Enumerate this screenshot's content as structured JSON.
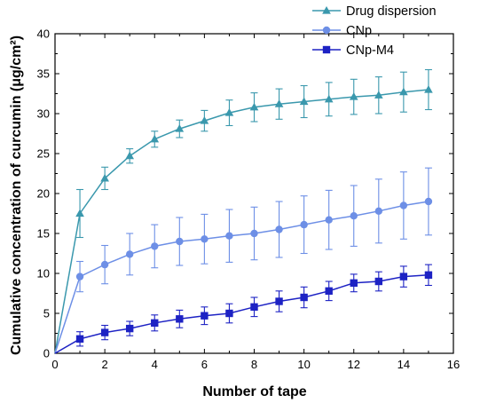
{
  "chart_data": {
    "type": "line",
    "title": "",
    "xlabel": "Number of tape",
    "ylabel": "Cumulative concentration of curcumin (μg/cm²)",
    "xlim": [
      0,
      16
    ],
    "ylim": [
      0,
      40
    ],
    "xticks": [
      0,
      2,
      4,
      6,
      8,
      10,
      12,
      14,
      16
    ],
    "yticks": [
      0,
      5,
      10,
      15,
      20,
      25,
      30,
      35,
      40
    ],
    "grid": false,
    "legend_position": "top-right",
    "x": [
      0,
      1,
      2,
      3,
      4,
      5,
      6,
      7,
      8,
      9,
      10,
      11,
      12,
      13,
      14,
      15
    ],
    "series": [
      {
        "name": "Drug dispersion",
        "color": "#3a98ad",
        "marker": "triangle",
        "values": [
          0,
          17.5,
          21.9,
          24.7,
          26.8,
          28.1,
          29.1,
          30.1,
          30.8,
          31.2,
          31.5,
          31.8,
          32.1,
          32.3,
          32.7,
          33.0
        ],
        "errors": [
          0,
          3.0,
          1.4,
          0.9,
          1.0,
          1.1,
          1.3,
          1.6,
          1.8,
          1.9,
          2.0,
          2.1,
          2.2,
          2.3,
          2.5,
          2.5
        ]
      },
      {
        "name": "CNp",
        "color": "#6d8fe6",
        "marker": "circle",
        "values": [
          0,
          9.6,
          11.1,
          12.4,
          13.4,
          14.0,
          14.3,
          14.7,
          15.0,
          15.5,
          16.1,
          16.7,
          17.2,
          17.8,
          18.5,
          19.0
        ],
        "errors": [
          0,
          1.9,
          2.4,
          2.6,
          2.7,
          3.0,
          3.1,
          3.3,
          3.3,
          3.5,
          3.6,
          3.7,
          3.8,
          4.0,
          4.2,
          4.2
        ]
      },
      {
        "name": "CNp-M4",
        "color": "#1d22c4",
        "marker": "square",
        "values": [
          0,
          1.8,
          2.6,
          3.1,
          3.8,
          4.3,
          4.7,
          5.0,
          5.8,
          6.5,
          7.0,
          7.8,
          8.8,
          9.0,
          9.6,
          9.8
        ],
        "errors": [
          0,
          0.9,
          0.9,
          0.9,
          1.0,
          1.1,
          1.1,
          1.2,
          1.2,
          1.3,
          1.3,
          1.2,
          1.1,
          1.2,
          1.3,
          1.3
        ]
      }
    ]
  }
}
